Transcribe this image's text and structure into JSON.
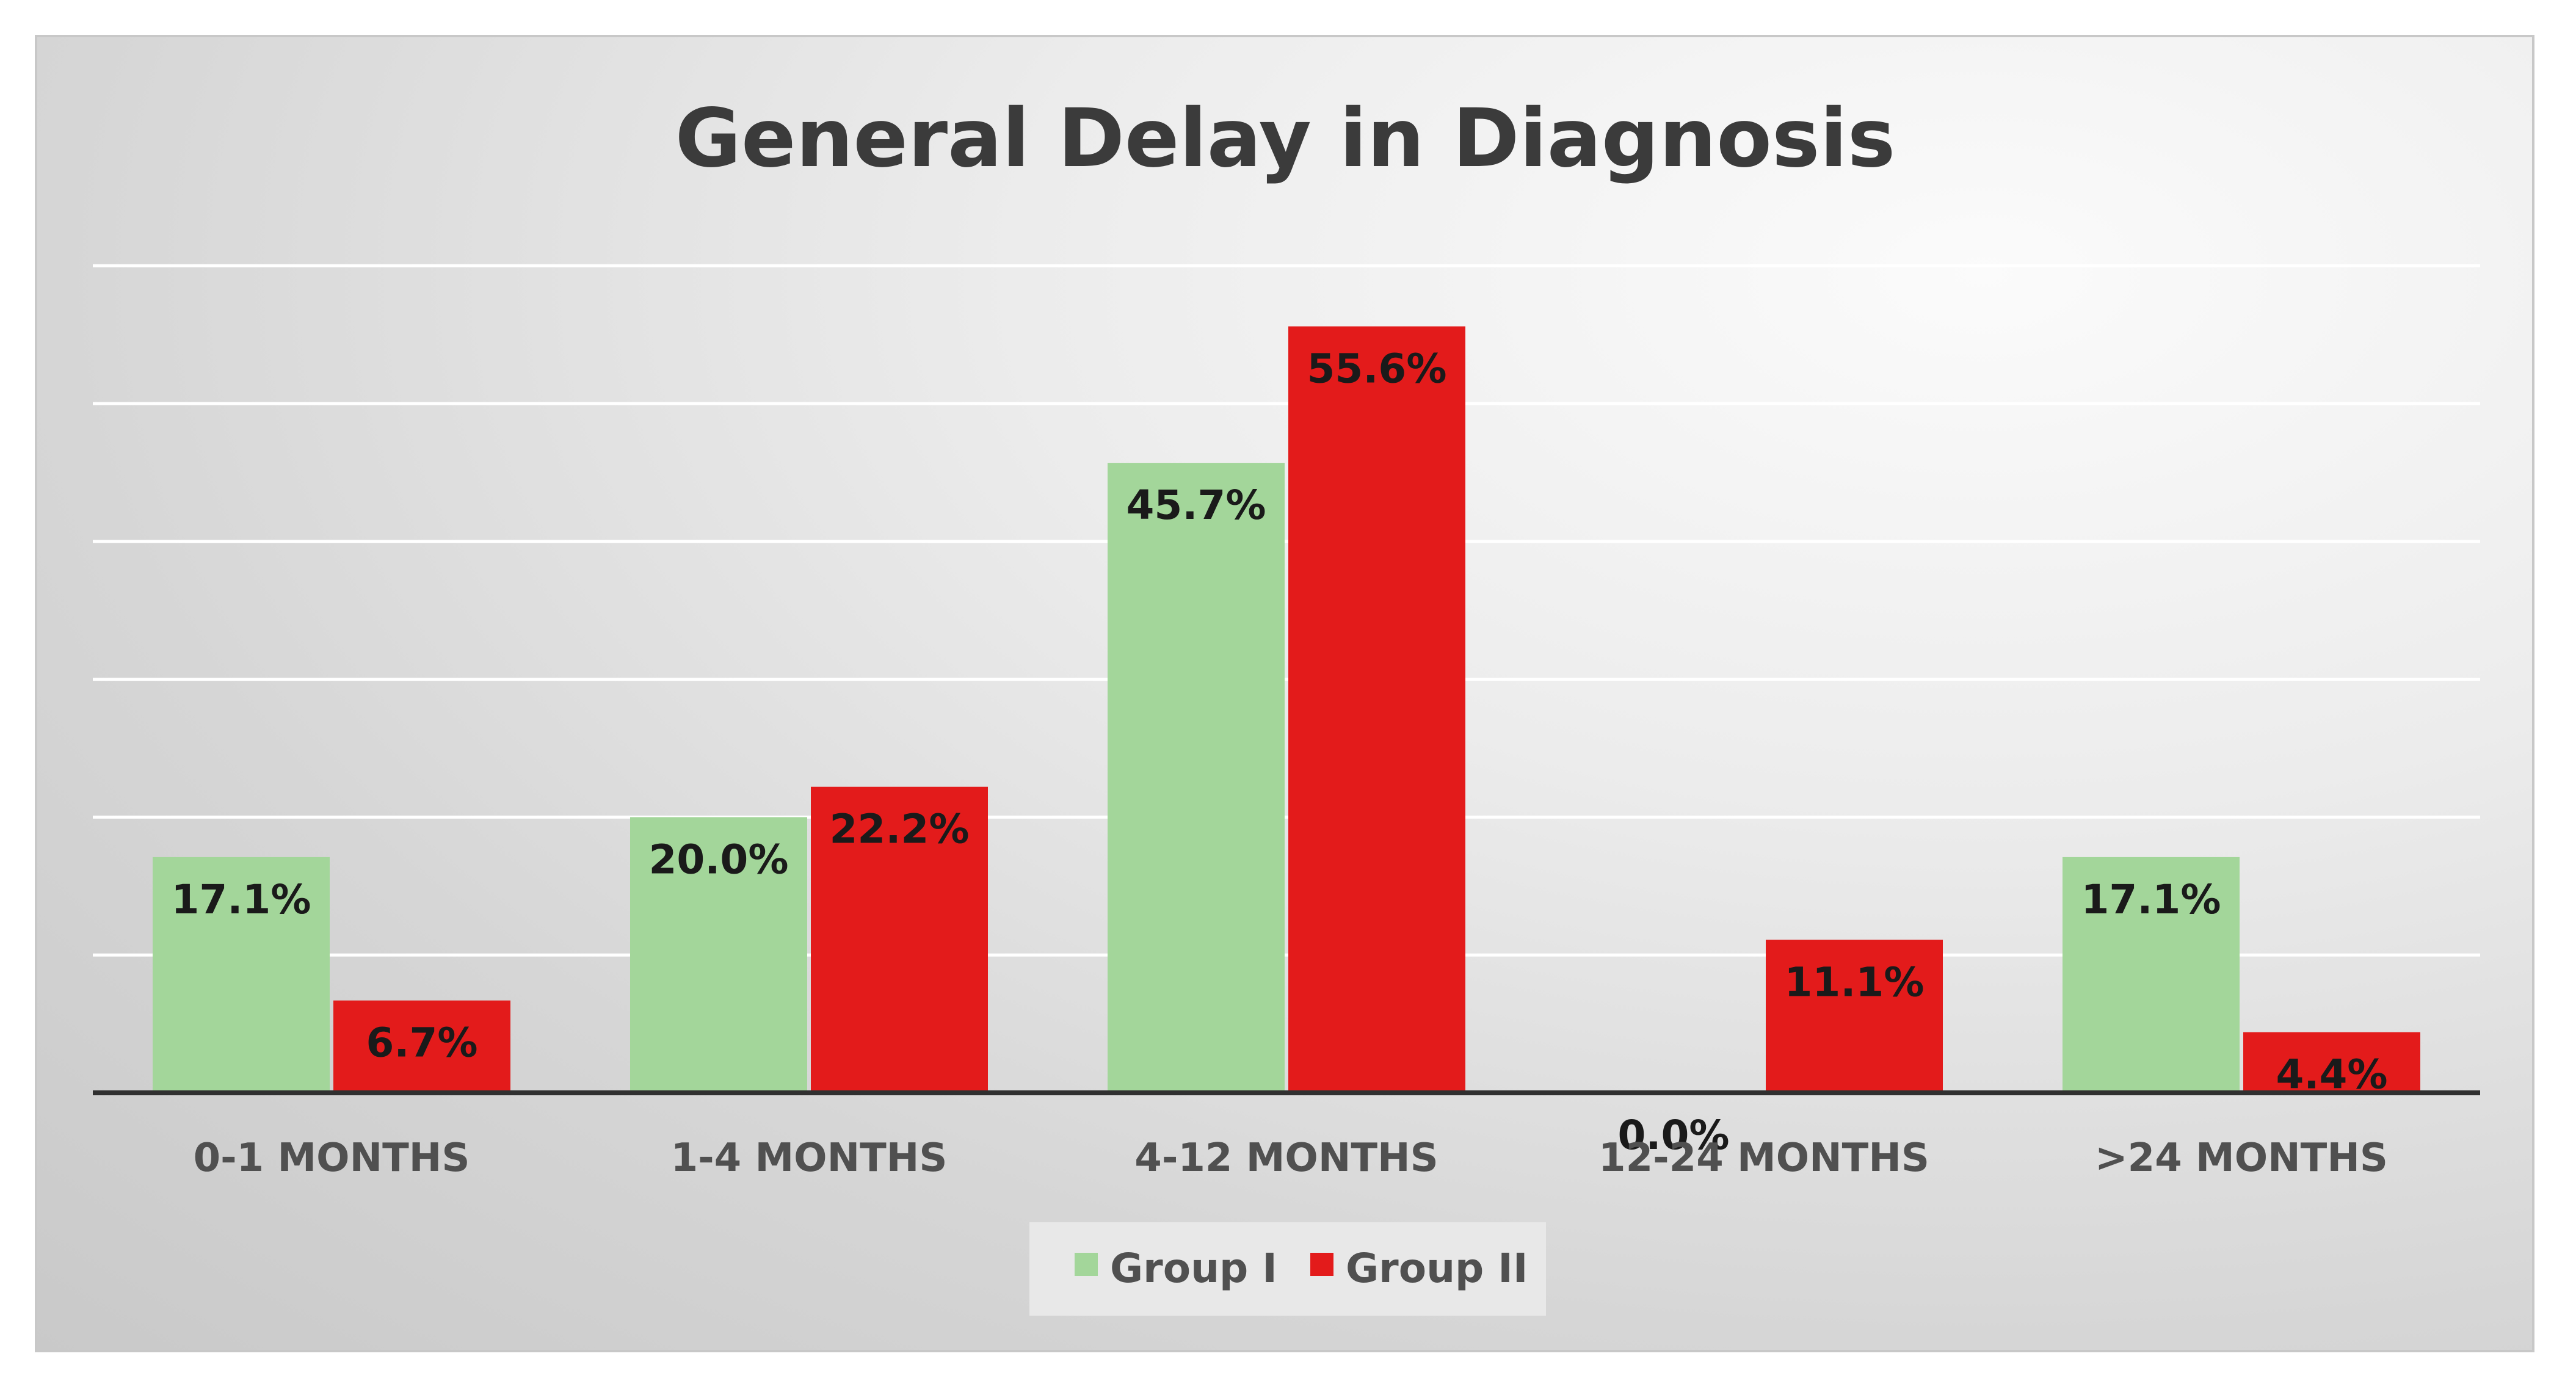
{
  "chart_data": {
    "type": "bar",
    "title": "General Delay in Diagnosis",
    "categories": [
      "0-1 MONTHS",
      "1-4 MONTHS",
      "4-12 MONTHS",
      "12-24 MONTHS",
      ">24 MONTHS"
    ],
    "series": [
      {
        "name": "Group I",
        "color": "#a3d69a",
        "values": [
          17.1,
          20.0,
          45.7,
          0.0,
          17.1
        ],
        "labels": [
          "17.1%",
          "20.0%",
          "45.7%",
          "0.0%",
          "17.1%"
        ]
      },
      {
        "name": "Group II",
        "color": "#e31b1b",
        "values": [
          6.7,
          22.2,
          55.6,
          11.1,
          4.4
        ],
        "labels": [
          "6.7%",
          "22.2%",
          "55.6%",
          "11.1%",
          "4.4%"
        ]
      }
    ],
    "xlabel": "",
    "ylabel": "",
    "ylim": [
      0,
      60
    ],
    "grid": true,
    "legend_position": "bottom"
  }
}
